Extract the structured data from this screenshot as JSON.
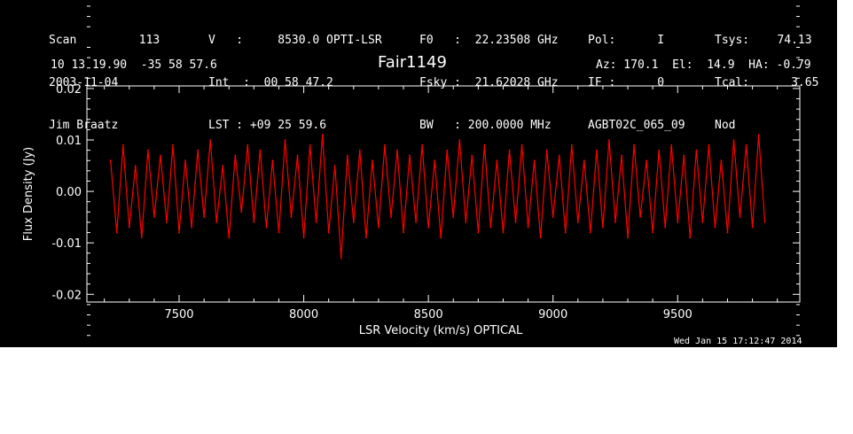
{
  "header": {
    "col1": [
      "Scan         113",
      "2003-11-04",
      "Jim Braatz"
    ],
    "col2": [
      "V   :     8530.0 OPTI-LSR",
      "Int  :  00 58 47.2",
      "LST : +09 25 59.6"
    ],
    "col3": [
      "F0   :  22.23508 GHz",
      "Fsky :  21.62028 GHz",
      "BW   : 200.0000 MHz"
    ],
    "col4": [
      "Pol:      I",
      "IF :      0",
      "AGBT02C_065_09"
    ],
    "col5": [
      "Tsys:    74.13",
      "Tcal:      3.65",
      "Nod"
    ],
    "coords": "10 13 19.90  -35 58 57.6",
    "source": "Fair1149",
    "azel": "Az: 170.1  El:  14.9  HA: -0.79"
  },
  "footer": {
    "date": "Wed Jan 15 17:12:47 2014"
  },
  "chart_data": {
    "type": "line",
    "title": "Fair1149",
    "xlabel": "LSR Velocity (km/s) OPTICAL",
    "ylabel": "Flux Density (Jy)",
    "xlim": [
      7130,
      9990
    ],
    "ylim": [
      -0.0215,
      0.0205
    ],
    "xticks": [
      7500,
      8000,
      8500,
      9000,
      9500
    ],
    "xtick_labels": [
      "7500",
      "8000",
      "8500",
      "9000",
      "9500"
    ],
    "yticks": [
      -0.02,
      -0.01,
      0.0,
      0.01,
      0.02
    ],
    "ytick_labels": [
      "-0.02",
      "-0.01",
      "0.00",
      "0.01",
      "0.02"
    ],
    "series": [
      {
        "color": "#ff0000",
        "x": [
          7225,
          7250,
          7275,
          7300,
          7325,
          7350,
          7375,
          7400,
          7425,
          7450,
          7475,
          7500,
          7525,
          7550,
          7575,
          7600,
          7625,
          7650,
          7675,
          7700,
          7725,
          7750,
          7775,
          7800,
          7825,
          7850,
          7875,
          7900,
          7925,
          7950,
          7975,
          8000,
          8025,
          8050,
          8075,
          8100,
          8125,
          8150,
          8175,
          8200,
          8225,
          8250,
          8275,
          8300,
          8325,
          8350,
          8375,
          8400,
          8425,
          8450,
          8475,
          8500,
          8525,
          8550,
          8575,
          8600,
          8625,
          8650,
          8675,
          8700,
          8725,
          8750,
          8775,
          8800,
          8825,
          8850,
          8875,
          8900,
          8925,
          8950,
          8975,
          9000,
          9025,
          9050,
          9075,
          9100,
          9125,
          9150,
          9175,
          9200,
          9225,
          9250,
          9275,
          9300,
          9325,
          9350,
          9375,
          9400,
          9425,
          9450,
          9475,
          9500,
          9525,
          9550,
          9575,
          9600,
          9625,
          9650,
          9675,
          9700,
          9725,
          9750,
          9775,
          9800,
          9825,
          9850
        ],
        "y": [
          0.006,
          -0.008,
          0.009,
          -0.007,
          0.005,
          -0.009,
          0.008,
          -0.005,
          0.007,
          -0.006,
          0.009,
          -0.008,
          0.006,
          -0.007,
          0.008,
          -0.005,
          0.01,
          -0.006,
          0.005,
          -0.009,
          0.007,
          -0.004,
          0.009,
          -0.006,
          0.008,
          -0.007,
          0.006,
          -0.008,
          0.01,
          -0.005,
          0.007,
          -0.009,
          0.009,
          -0.006,
          0.011,
          -0.008,
          0.005,
          -0.013,
          0.007,
          -0.006,
          0.008,
          -0.009,
          0.006,
          -0.007,
          0.009,
          -0.005,
          0.008,
          -0.008,
          0.007,
          -0.006,
          0.009,
          -0.007,
          0.006,
          -0.009,
          0.008,
          -0.005,
          0.01,
          -0.006,
          0.007,
          -0.008,
          0.009,
          -0.007,
          0.006,
          -0.008,
          0.008,
          -0.006,
          0.009,
          -0.007,
          0.006,
          -0.009,
          0.008,
          -0.005,
          0.007,
          -0.008,
          0.009,
          -0.006,
          0.006,
          -0.008,
          0.008,
          -0.007,
          0.01,
          -0.006,
          0.007,
          -0.009,
          0.009,
          -0.005,
          0.006,
          -0.008,
          0.008,
          -0.007,
          0.009,
          -0.006,
          0.007,
          -0.009,
          0.008,
          -0.006,
          0.009,
          -0.007,
          0.006,
          -0.008,
          0.01,
          -0.005,
          0.009,
          -0.007,
          0.011,
          -0.006
        ]
      }
    ]
  }
}
